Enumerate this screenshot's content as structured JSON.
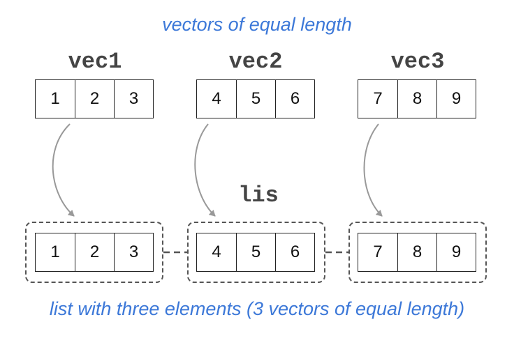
{
  "top_caption": "vectors of equal length",
  "bottom_caption": "list with three elements (3 vectors of equal length)",
  "list_label": "lis",
  "vectors": [
    {
      "name": "vec1",
      "values": [
        "1",
        "2",
        "3"
      ]
    },
    {
      "name": "vec2",
      "values": [
        "4",
        "5",
        "6"
      ]
    },
    {
      "name": "vec3",
      "values": [
        "7",
        "8",
        "9"
      ]
    }
  ],
  "list_elements": [
    {
      "values": [
        "1",
        "2",
        "3"
      ]
    },
    {
      "values": [
        "4",
        "5",
        "6"
      ]
    },
    {
      "values": [
        "7",
        "8",
        "9"
      ]
    }
  ],
  "colors": {
    "caption": "#3c78d8",
    "label": "#444444",
    "arrow": "#999999",
    "dash": "#555555"
  }
}
